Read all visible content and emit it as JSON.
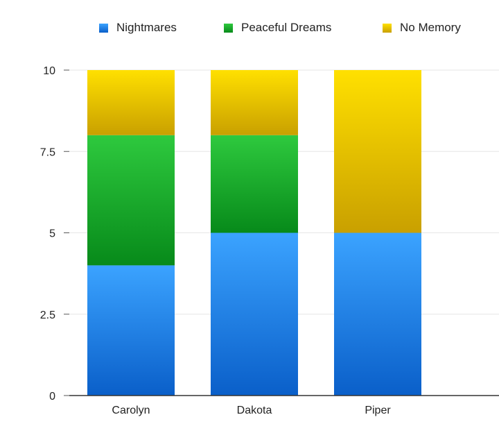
{
  "chart_data": {
    "type": "bar",
    "stacked": true,
    "categories": [
      "Carolyn",
      "Dakota",
      "Piper"
    ],
    "series": [
      {
        "name": "Nightmares",
        "values": [
          4,
          5,
          5
        ],
        "color": "#2b8cf0",
        "gradient": [
          "#3ba3ff",
          "#0a5fc9"
        ]
      },
      {
        "name": "Peaceful Dreams",
        "values": [
          4,
          3,
          0
        ],
        "color": "#17b02a",
        "gradient": [
          "#2ec93e",
          "#078a1a"
        ]
      },
      {
        "name": "No Memory",
        "values": [
          2,
          2,
          5
        ],
        "color": "#e5c000",
        "gradient": [
          "#ffe000",
          "#c9a000"
        ]
      }
    ],
    "ylim": [
      0,
      10
    ],
    "yticks": [
      "0",
      "2.5",
      "5",
      "7.5",
      "10"
    ],
    "grid": true,
    "legend_position": "top"
  }
}
